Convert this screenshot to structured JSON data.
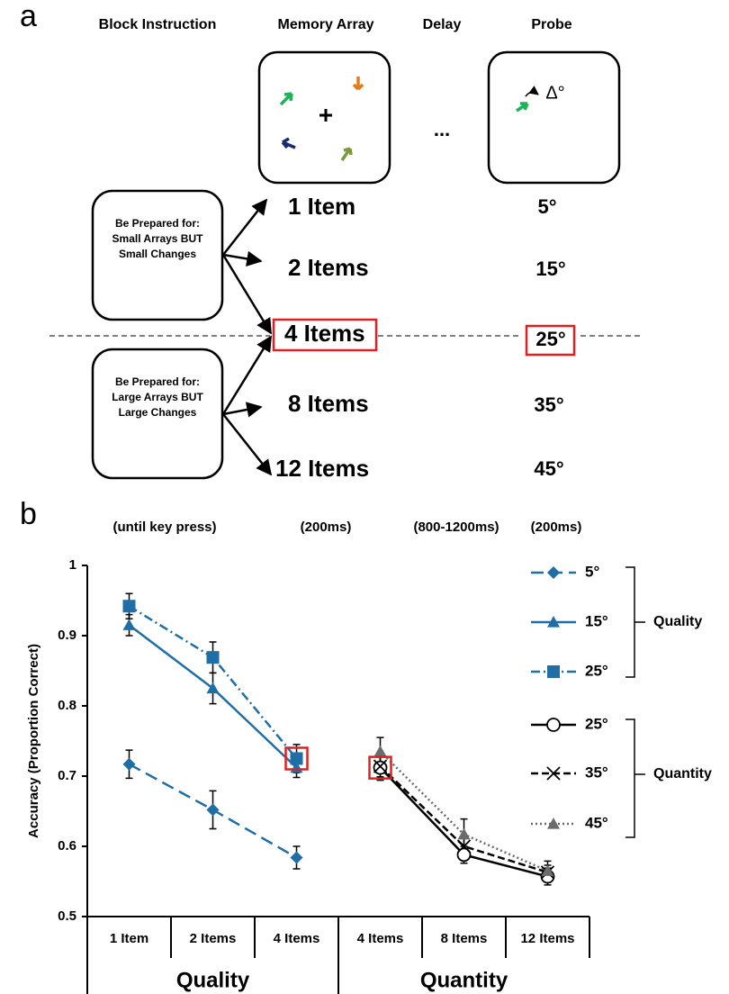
{
  "panel_a": {
    "label": "a",
    "columns": [
      "Block Instruction",
      "Memory Array",
      "Delay",
      "Probe"
    ],
    "delay_symbol": "...",
    "probe_symbol": "Δ°",
    "instructions": [
      "Be Prepared for: Small Arrays BUT Small Changes",
      "Be Prepared for: Large Arrays BUT Large Changes"
    ],
    "set_sizes": [
      "1 Item",
      "2 Items",
      "4 Items",
      "8 Items",
      "12 Items"
    ],
    "changes": [
      "5°",
      "15°",
      "25°",
      "35°",
      "45°"
    ],
    "timings": [
      "(until key press)",
      "(200ms)",
      "(800-1200ms)",
      "(200ms)"
    ]
  },
  "panel_b": {
    "label": "b"
  },
  "chart_data": {
    "type": "line",
    "y_label": "Accuracy (Proportion Correct)",
    "categories": [
      "1 Item",
      "2 Items",
      "4 Items",
      "4 Items",
      "8 Items",
      "12 Items"
    ],
    "groups": [
      "Quality",
      "Quantity"
    ],
    "legend_groups": [
      "Quality",
      "Quantity"
    ],
    "ylim": [
      0.5,
      1
    ],
    "yticks": [
      0.5,
      0.6,
      0.7,
      0.8,
      0.9,
      1
    ],
    "series": [
      {
        "name": "5°",
        "color": "#1f6ea6",
        "marker": "diamond",
        "line_style": "long-dash",
        "values": [
          0.717,
          0.652,
          0.584,
          null,
          null,
          null
        ],
        "errors": [
          0.02,
          0.027,
          0.016,
          null,
          null,
          null
        ]
      },
      {
        "name": "15°",
        "color": "#1f6ea6",
        "marker": "triangle",
        "line_style": "solid",
        "values": [
          0.915,
          0.825,
          0.712,
          null,
          null,
          null
        ],
        "errors": [
          0.015,
          0.022,
          0.014,
          null,
          null,
          null
        ]
      },
      {
        "name": "25°",
        "color": "#1f6ea6",
        "marker": "square",
        "line_style": "dash-dot",
        "values": [
          0.942,
          0.869,
          0.725,
          null,
          null,
          null
        ],
        "errors": [
          0.018,
          0.022,
          0.02,
          null,
          null,
          null
        ]
      },
      {
        "name": "25°",
        "color": "#000000",
        "marker": "circle-open",
        "line_style": "solid",
        "values": [
          null,
          null,
          null,
          0.712,
          0.588,
          0.557
        ],
        "errors": [
          null,
          null,
          null,
          0.018,
          0.012,
          0.012
        ]
      },
      {
        "name": "35°",
        "color": "#000000",
        "marker": "x",
        "line_style": "dashed",
        "values": [
          null,
          null,
          null,
          0.714,
          0.6,
          0.563
        ],
        "errors": [
          null,
          null,
          null,
          0.015,
          0.012,
          0.01
        ]
      },
      {
        "name": "45°",
        "color": "#6b6b6b",
        "marker": "triangle",
        "line_style": "dotted",
        "values": [
          null,
          null,
          null,
          0.735,
          0.617,
          0.565
        ],
        "errors": [
          null,
          null,
          null,
          0.02,
          0.022,
          0.014
        ]
      }
    ]
  }
}
